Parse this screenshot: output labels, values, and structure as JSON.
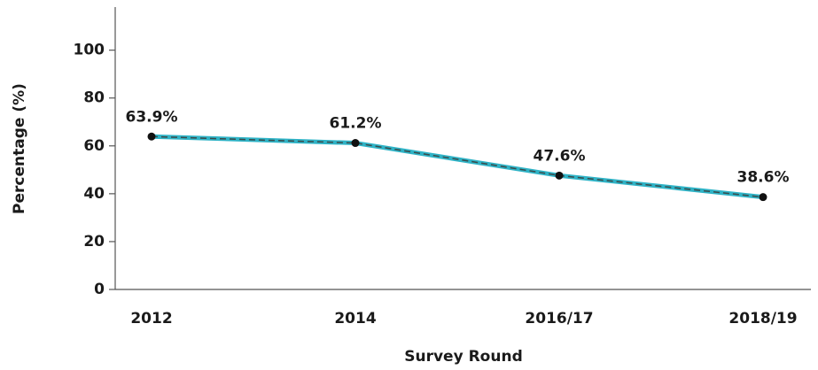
{
  "chart_data": {
    "type": "line",
    "x_label": "Survey Round",
    "y_label": "Percentage (%)",
    "categories": [
      "2012",
      "2014",
      "2016/17",
      "2018/19"
    ],
    "values": [
      63.9,
      61.2,
      47.6,
      38.6
    ],
    "value_labels": [
      "63.9%",
      "61.2%",
      "47.6%",
      "38.6%"
    ],
    "color": "#2fb3c6",
    "dash_color": "#3a4a4a",
    "marker_color": "#111111",
    "ylim": [
      0,
      118
    ],
    "yticks": [
      0,
      20,
      40,
      60,
      80,
      100
    ],
    "grid": false
  }
}
